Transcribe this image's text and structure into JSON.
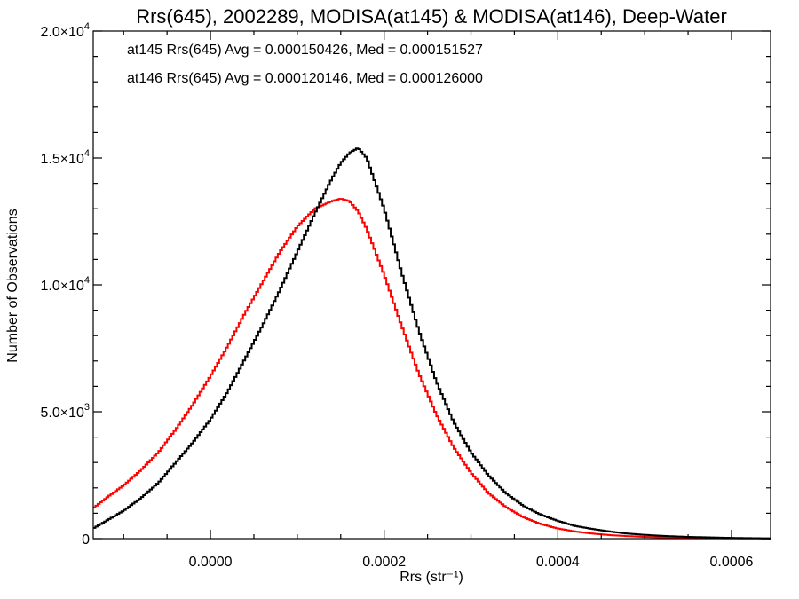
{
  "chart_data": {
    "type": "line",
    "title": "Rrs(645), 2002289, MODISA(at145) & MODISA(at146), Deep-Water",
    "xlabel": "Rrs (str⁻¹)",
    "ylabel": "Number of Observations",
    "xlim": [
      -0.000135,
      0.000645
    ],
    "ylim": [
      0,
      20000
    ],
    "x_ticks": [
      {
        "value": 0.0,
        "label": "0.0000"
      },
      {
        "value": 0.0002,
        "label": "0.0002"
      },
      {
        "value": 0.0004,
        "label": "0.0004"
      },
      {
        "value": 0.0006,
        "label": "0.0006"
      }
    ],
    "y_ticks": [
      {
        "value": 0,
        "label": "0",
        "exp": ""
      },
      {
        "value": 5000,
        "label": "5.0×10",
        "exp": "3"
      },
      {
        "value": 10000,
        "label": "1.0×10",
        "exp": "4"
      },
      {
        "value": 15000,
        "label": "1.5×10",
        "exp": "4"
      },
      {
        "value": 20000,
        "label": "2.0×10",
        "exp": "4"
      }
    ],
    "legend_position": "top-left",
    "grid": false,
    "series": [
      {
        "name": "at145 Rrs(645) Avg = 0.000150426, Med = 0.000151527",
        "color": "#000000",
        "x": [
          -0.000135,
          -0.00012,
          -0.0001,
          -8e-05,
          -6e-05,
          -4e-05,
          -2e-05,
          0.0,
          2e-05,
          4e-05,
          6e-05,
          8e-05,
          0.0001,
          0.00012,
          0.00014,
          0.00015,
          0.00016,
          0.00017,
          0.00018,
          0.0002,
          0.00022,
          0.00024,
          0.00026,
          0.00028,
          0.0003,
          0.00032,
          0.00034,
          0.00036,
          0.00038,
          0.0004,
          0.00042,
          0.00044,
          0.00046,
          0.00048,
          0.0005,
          0.00052,
          0.00055,
          0.0006,
          0.000645
        ],
        "y": [
          400,
          700,
          1100,
          1600,
          2200,
          3000,
          3800,
          4700,
          5800,
          7100,
          8400,
          9800,
          11300,
          12800,
          14200,
          14800,
          15200,
          15400,
          15000,
          13000,
          10500,
          8200,
          6200,
          4600,
          3400,
          2500,
          1800,
          1300,
          950,
          700,
          500,
          380,
          280,
          200,
          150,
          110,
          70,
          30,
          10
        ]
      },
      {
        "name": "at146 Rrs(645) Avg = 0.000120146, Med = 0.000126000",
        "color": "#ff0000",
        "x": [
          -0.000135,
          -0.00012,
          -0.0001,
          -8e-05,
          -6e-05,
          -4e-05,
          -2e-05,
          0.0,
          2e-05,
          4e-05,
          6e-05,
          8e-05,
          0.0001,
          0.00012,
          0.00014,
          0.00015,
          0.00016,
          0.00017,
          0.00018,
          0.0002,
          0.00022,
          0.00024,
          0.00026,
          0.00028,
          0.0003,
          0.00032,
          0.00034,
          0.00036,
          0.00038,
          0.0004,
          0.00042,
          0.00044,
          0.00046,
          0.00048,
          0.0005,
          0.00052,
          0.00055,
          0.0006,
          0.000645
        ],
        "y": [
          1200,
          1600,
          2100,
          2700,
          3400,
          4300,
          5300,
          6400,
          7600,
          8900,
          10100,
          11300,
          12300,
          13000,
          13300,
          13400,
          13300,
          12900,
          12200,
          10400,
          8400,
          6500,
          4900,
          3600,
          2600,
          1800,
          1250,
          850,
          580,
          400,
          280,
          200,
          140,
          100,
          70,
          50,
          30,
          12,
          5
        ]
      }
    ]
  }
}
